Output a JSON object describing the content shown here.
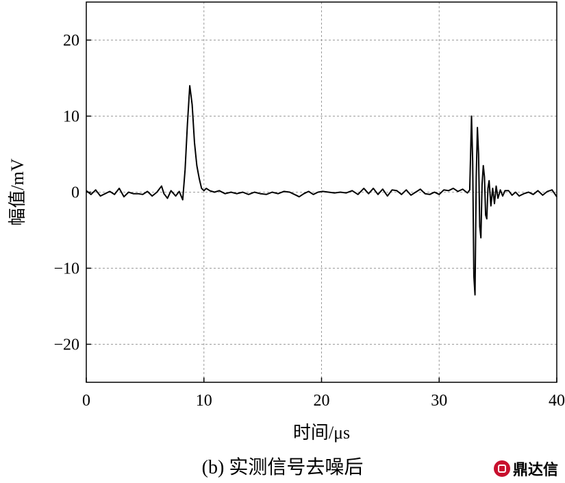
{
  "chart_data": {
    "type": "line",
    "xlabel": "时间/μs",
    "ylabel": "幅值/mV",
    "xlim": [
      0,
      40
    ],
    "ylim": [
      -25,
      25
    ],
    "xticks": [
      0,
      10,
      20,
      30,
      40
    ],
    "yticks": [
      20,
      10,
      0,
      -10,
      -20
    ],
    "ytick_labels": [
      "20",
      "10",
      "0",
      "−10",
      "−20"
    ],
    "grid": true,
    "grid_style": "dashed",
    "series": [
      {
        "color": "#000000",
        "x": [
          0,
          0.4,
          0.8,
          1.2,
          1.6,
          2.0,
          2.4,
          2.8,
          3.2,
          3.6,
          4.0,
          4.4,
          4.8,
          5.2,
          5.6,
          6.0,
          6.4,
          6.6,
          6.9,
          7.2,
          7.6,
          7.9,
          8.2,
          8.4,
          8.6,
          8.8,
          9.0,
          9.2,
          9.4,
          9.6,
          9.8,
          10.0,
          10.2,
          10.5,
          10.9,
          11.3,
          11.8,
          12.3,
          12.8,
          13.3,
          13.8,
          14.3,
          14.8,
          15.3,
          15.8,
          16.3,
          16.8,
          17.3,
          17.7,
          18.1,
          18.5,
          18.9,
          19.3,
          19.7,
          20.1,
          20.6,
          21.1,
          21.6,
          22.1,
          22.6,
          23.1,
          23.6,
          24.0,
          24.4,
          24.8,
          25.2,
          25.6,
          26.0,
          26.4,
          26.8,
          27.2,
          27.6,
          28.0,
          28.4,
          28.8,
          29.2,
          29.6,
          30.0,
          30.4,
          30.8,
          31.2,
          31.6,
          32.0,
          32.4,
          32.6,
          32.75,
          32.85,
          32.95,
          33.05,
          33.15,
          33.25,
          33.35,
          33.45,
          33.55,
          33.65,
          33.75,
          33.85,
          33.95,
          34.05,
          34.15,
          34.25,
          34.4,
          34.55,
          34.7,
          34.85,
          35.0,
          35.2,
          35.4,
          35.6,
          35.9,
          36.2,
          36.5,
          36.8,
          37.2,
          37.6,
          38.0,
          38.4,
          38.8,
          39.2,
          39.6,
          40.0
        ],
        "y": [
          0.2,
          -0.3,
          0.3,
          -0.5,
          -0.2,
          0.1,
          -0.3,
          0.5,
          -0.6,
          0.0,
          -0.2,
          -0.2,
          -0.3,
          0.1,
          -0.5,
          0.0,
          0.8,
          -0.2,
          -0.8,
          0.2,
          -0.5,
          0.1,
          -1.0,
          3.0,
          9.0,
          14.0,
          11.5,
          6.5,
          3.5,
          1.8,
          0.5,
          0.2,
          0.5,
          0.2,
          0.0,
          0.2,
          -0.2,
          0.0,
          -0.2,
          0.0,
          -0.3,
          0.0,
          -0.2,
          -0.3,
          0.0,
          -0.2,
          0.1,
          0.0,
          -0.3,
          -0.6,
          -0.2,
          0.1,
          -0.3,
          0.0,
          0.1,
          0.0,
          -0.1,
          0.0,
          -0.1,
          0.2,
          -0.3,
          0.5,
          -0.2,
          0.5,
          -0.3,
          0.4,
          -0.5,
          0.3,
          0.2,
          -0.3,
          0.3,
          -0.4,
          0.0,
          0.4,
          -0.2,
          -0.3,
          0.0,
          -0.3,
          0.3,
          0.2,
          0.5,
          0.1,
          0.4,
          -0.1,
          0.3,
          10.0,
          4.0,
          -11.0,
          -13.5,
          2.0,
          8.5,
          5.0,
          -4.5,
          -6.0,
          1.0,
          3.5,
          2.0,
          -3.0,
          -3.5,
          0.5,
          1.5,
          -1.8,
          0.5,
          -1.5,
          0.8,
          -0.8,
          0.3,
          -0.5,
          0.2,
          0.2,
          -0.4,
          0.0,
          -0.5,
          -0.2,
          0.0,
          -0.3,
          0.2,
          -0.4,
          0.1,
          0.3,
          -0.6
        ]
      }
    ]
  },
  "caption": "(b) 实测信号去噪后",
  "watermark": "鼎达信",
  "watermark_color": "#c8102e"
}
